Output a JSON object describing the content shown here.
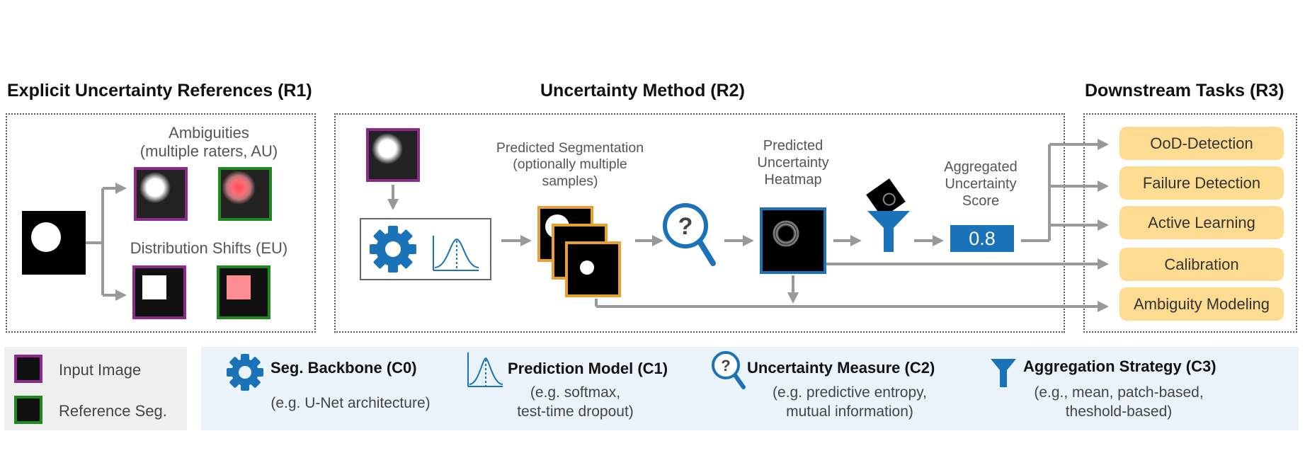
{
  "sections": {
    "r1_title": "Explicit Uncertainty References (R1)",
    "r2_title": "Uncertainty Method (R2)",
    "r3_title": "Downstream Tasks (R3)"
  },
  "r1": {
    "ambiguities_label": "Ambiguities\n(multiple raters, AU)",
    "shifts_label": "Distribution Shifts (EU)"
  },
  "r2": {
    "pred_seg_label": "Predicted Segmentation\n(optionally multiple\nsamples)",
    "heatmap_label": "Predicted\nUncertainty\nHeatmap",
    "score_label": "Aggregated\nUncertainty\nScore",
    "score_value": "0.8"
  },
  "tasks": [
    "OoD-Detection",
    "Failure Detection",
    "Active Learning",
    "Calibration",
    "Ambiguity Modeling"
  ],
  "legend": {
    "input_image": "Input Image",
    "reference_seg": "Reference Seg.",
    "c0_title": "Seg. Backbone (C0)",
    "c0_sub": "(e.g. U-Net architecture)",
    "c1_title": "Prediction Model (C1)",
    "c1_sub": "(e.g.  softmax,\ntest-time dropout)",
    "c2_title": "Uncertainty Measure (C2)",
    "c2_sub": "(e.g. predictive entropy,\nmutual information)",
    "c3_title": "Aggregation Strategy (C3)",
    "c3_sub": "(e.g., mean, patch-based,\ntheshold-based)"
  },
  "colors": {
    "purple": "#8b2a8b",
    "green": "#1f8a1f",
    "orange": "#e8a030",
    "blue": "#1a73b8",
    "task_fill": "#fddc92",
    "arrow": "#999999",
    "legend_bg": "#eaf3f9"
  }
}
